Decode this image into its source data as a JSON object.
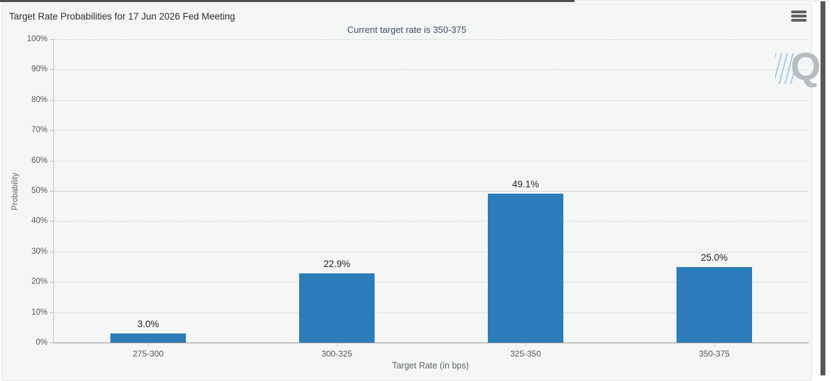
{
  "header": {
    "menu_icon": "hamburger-icon"
  },
  "chart_data": {
    "type": "bar",
    "title": "Target Rate Probabilities for 17 Jun 2026 Fed Meeting",
    "subtitle": "Current target rate is 350-375",
    "categories": [
      "275-300",
      "300-325",
      "325-350",
      "350-375"
    ],
    "values": [
      3.0,
      22.9,
      49.1,
      25.0
    ],
    "value_labels": [
      "3.0%",
      "22.9%",
      "49.1%",
      "25.0%"
    ],
    "xlabel": "Target Rate (in bps)",
    "ylabel": "Probability",
    "ylim": [
      0,
      100
    ],
    "ytick_step": 10,
    "ytick_suffix": "%",
    "grid": "horizontal-dotted",
    "solid_gridline_at": 50,
    "legend": "none",
    "bar_color": "#2b7cb9",
    "watermark": "Q"
  }
}
